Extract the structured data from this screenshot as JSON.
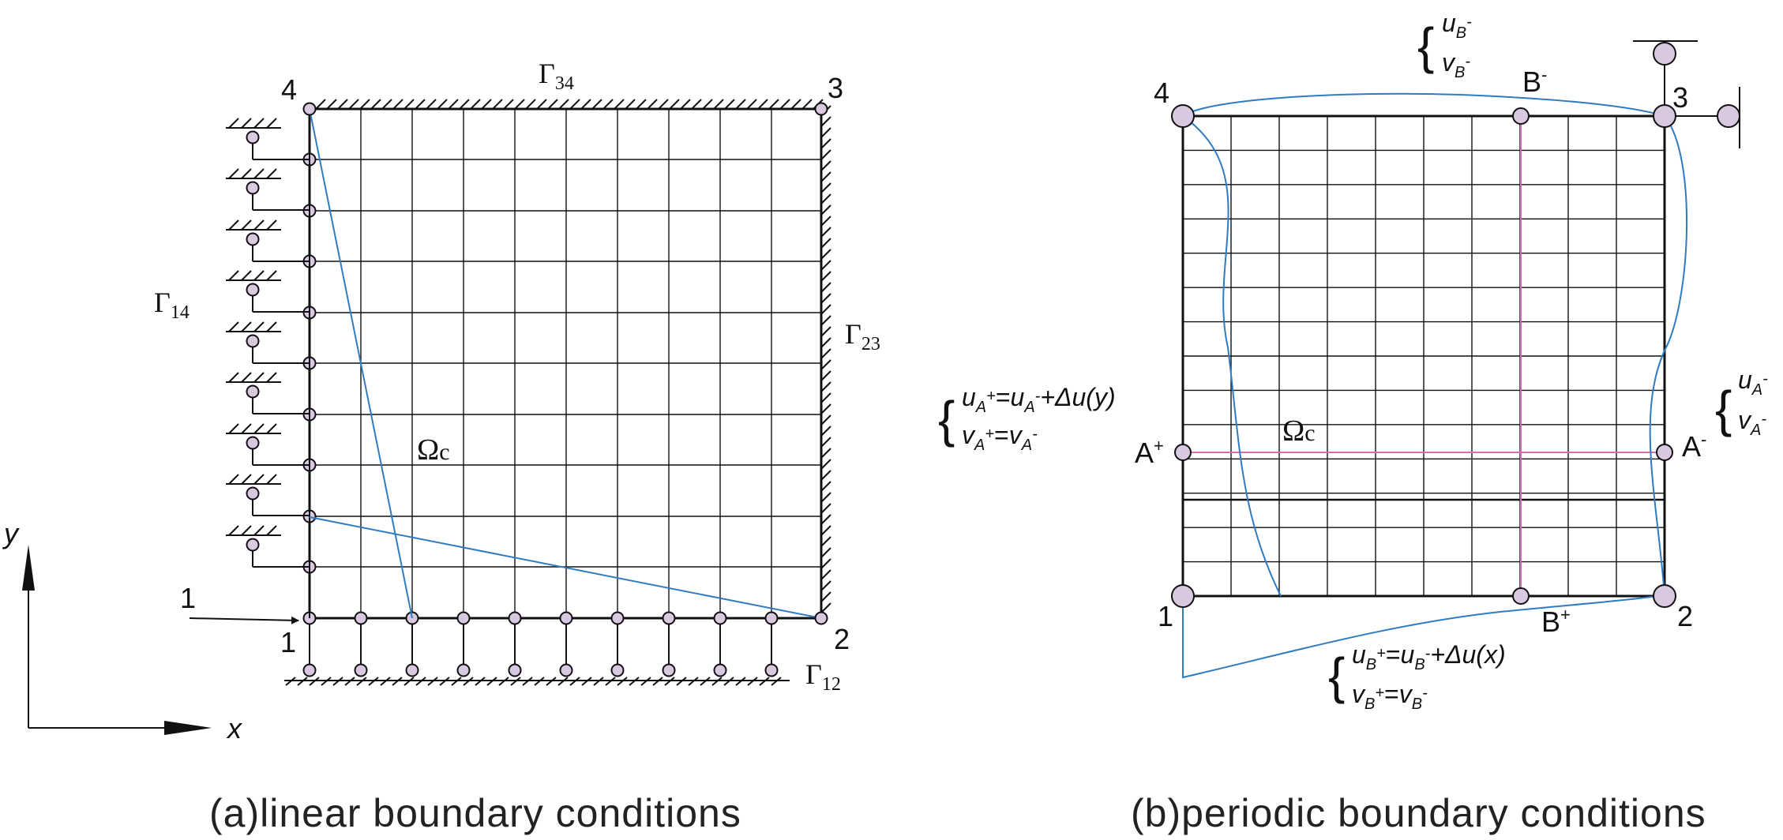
{
  "panel_a": {
    "caption": "(a)linear boundary conditions",
    "corners": {
      "c1": "1",
      "c2": "2",
      "c3": "3",
      "c4": "4"
    },
    "load_label": "1",
    "gamma": {
      "symbol": "Γ",
      "s12": "12",
      "s14": "14",
      "s23": "23",
      "s34": "34"
    },
    "omega": {
      "symbol": "Ω",
      "sub": "c"
    },
    "axes": {
      "x": "x",
      "y": "y"
    }
  },
  "panel_b": {
    "caption": "(b)periodic boundary conditions",
    "corners": {
      "c1": "1",
      "c2": "2",
      "c3": "3",
      "c4": "4"
    },
    "points": {
      "a_plus": "A",
      "a_minus": "A",
      "b_plus": "B",
      "b_minus": "B",
      "plus": "+",
      "minus": "-"
    },
    "omega": {
      "symbol": "Ω",
      "sub": "c"
    },
    "eq_top": {
      "u": "u",
      "v": "v",
      "sub": "B",
      "sup": "-"
    },
    "eq_right": {
      "u": "u",
      "v": "v",
      "sub": "A",
      "sup": "-"
    },
    "eq_left": {
      "line1_u1": "u",
      "line1_sub1": "A",
      "line1_sup1": "+",
      "line1_eq": "=",
      "line1_u2": "u",
      "line1_sub2": "A",
      "line1_sup2": "-",
      "line1_rest": "+Δu(y)",
      "line2_v1": "v",
      "line2_sub1": "A",
      "line2_sup1": "+",
      "line2_eq": "=",
      "line2_v2": "v",
      "line2_sub2": "A",
      "line2_sup2": "-"
    },
    "eq_bottom": {
      "line1_u1": "u",
      "line1_sub1": "B",
      "line1_sup1": "+",
      "line1_eq": "=",
      "line1_u2": "u",
      "line1_sub2": "B",
      "line1_sup2": "-",
      "line1_rest": "+Δu(x)",
      "line2_v1": "v",
      "line2_sub1": "B",
      "line2_sup1": "+",
      "line2_eq": "=",
      "line2_v2": "v",
      "line2_sub2": "B",
      "line2_sup2": "-"
    }
  },
  "colors": {
    "line": "#111111",
    "node_fill": "#d8c8e0",
    "blue": "#2f7cc0",
    "pink": "#d070b0"
  }
}
